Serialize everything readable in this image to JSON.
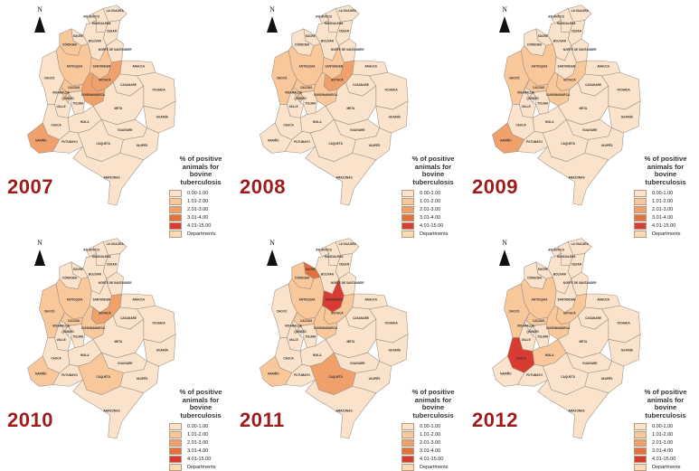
{
  "legend": {
    "title_lines": [
      "% of positive",
      "animals for",
      "bovine",
      "tuberculosis"
    ],
    "items": [
      {
        "label": "0.00-1.00",
        "color": "#fbe3cb"
      },
      {
        "label": "1.01-2.00",
        "color": "#f8c89b"
      },
      {
        "label": "2.01-3.00",
        "color": "#f0a06a"
      },
      {
        "label": "3.01-4.00",
        "color": "#e5703f"
      },
      {
        "label": "4.01-15.00",
        "color": "#d93a32"
      },
      {
        "label": "Departments",
        "color": "#fad9b5"
      }
    ]
  },
  "compass_label": "N",
  "department_labels": [
    "ATLÁNTICO",
    "MAGDALENA",
    "LA GUAJIRA",
    "CESAR",
    "BOLÍVAR",
    "SUCRE",
    "CÓRDOBA",
    "NORTE DE SANTANDER",
    "ANTIOQUIA",
    "SANTANDER",
    "ARAUCA",
    "CHOCÓ",
    "CALDAS",
    "RISARALDA",
    "BOYACÁ",
    "CASANARE",
    "VICHADA",
    "CUNDINAMARCA",
    "QUINDÍO",
    "TOLIMA",
    "VALLE",
    "META",
    "CAUCA",
    "HUILA",
    "GUAINÍA",
    "GUAVIARE",
    "NARIÑO",
    "PUTUMAYO",
    "CAQUETÁ",
    "VAUPÉS",
    "AMAZONAS"
  ],
  "panels": [
    {
      "year": "2007",
      "highlights": {
        "ANTIOQUIA": 2,
        "BOYACÁ": 3,
        "CUNDINAMARCA": 3,
        "NARIÑO": 3,
        "CALDAS": 2,
        "SANTANDER": 2,
        "QUINDÍO": 2,
        "CÓRDOBA": 2,
        "RISARALDA": 2
      }
    },
    {
      "year": "2008",
      "highlights": {
        "ANTIOQUIA": 2,
        "BOYACÁ": 3,
        "CUNDINAMARCA": 2,
        "CALDAS": 2,
        "CHOCÓ": 2,
        "SANTANDER": 2,
        "RISARALDA": 2,
        "QUINDÍO": 2
      }
    },
    {
      "year": "2009",
      "highlights": {
        "ANTIOQUIA": 2,
        "BOYACÁ": 2,
        "CUNDINAMARCA": 2,
        "NARIÑO": 3,
        "CALDAS": 2,
        "CHOCÓ": 2
      }
    },
    {
      "year": "2010",
      "highlights": {
        "ANTIOQUIA": 2,
        "BOYACÁ": 3,
        "CUNDINAMARCA": 2,
        "NARIÑO": 2,
        "CAQUETÁ": 2,
        "CHOCÓ": 2,
        "CALDAS": 2
      }
    },
    {
      "year": "2011",
      "highlights": {
        "SUCRE": 4,
        "SANTANDER": 5,
        "ANTIOQUIA": 2,
        "BOYACÁ": 2,
        "CAQUETÁ": 3,
        "NARIÑO": 2,
        "CUNDINAMARCA": 2,
        "CALDAS": 2,
        "CÓRDOBA": 2
      }
    },
    {
      "year": "2012",
      "highlights": {
        "CAUCA": 5,
        "ANTIOQUIA": 2,
        "BOYACÁ": 2,
        "CUNDINAMARCA": 2,
        "CALDAS": 2,
        "CHOCÓ": 2,
        "HUILA": 2
      }
    }
  ]
}
